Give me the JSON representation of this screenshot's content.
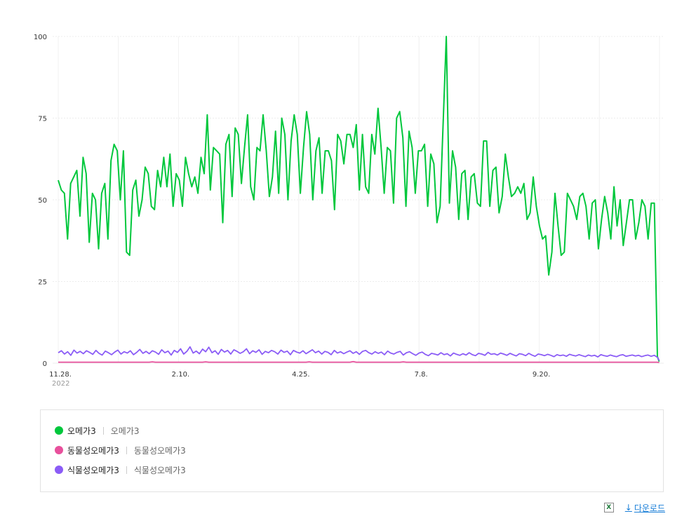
{
  "chart_data": {
    "type": "line",
    "y_ticks": [
      "100",
      "75",
      "50",
      "25",
      "0"
    ],
    "ylim": [
      0,
      100
    ],
    "x_ticks": [
      "11.28.",
      "2.10.",
      "4.25.",
      "7.8.",
      "9.20."
    ],
    "x_year_label": "2022",
    "grid": true,
    "series": [
      {
        "name": "오메가3",
        "keyword": "오메가3",
        "color": "#00c73c",
        "values": [
          56,
          53,
          52,
          38,
          55,
          57,
          59,
          45,
          63,
          58,
          37,
          52,
          50,
          35,
          52,
          55,
          38,
          62,
          67,
          65,
          50,
          65,
          34,
          33,
          53,
          56,
          45,
          50,
          60,
          58,
          48,
          47,
          59,
          54,
          63,
          54,
          64,
          48,
          58,
          56,
          48,
          63,
          58,
          54,
          57,
          52,
          63,
          58,
          76,
          53,
          66,
          65,
          64,
          43,
          67,
          70,
          51,
          72,
          70,
          55,
          66,
          76,
          54,
          50,
          66,
          65,
          76,
          65,
          51,
          57,
          71,
          52,
          75,
          70,
          50,
          68,
          76,
          70,
          52,
          66,
          77,
          70,
          50,
          65,
          69,
          52,
          65,
          65,
          62,
          47,
          70,
          68,
          61,
          70,
          70,
          66,
          73,
          53,
          70,
          54,
          52,
          70,
          64,
          78,
          66,
          52,
          66,
          65,
          49,
          75,
          77,
          69,
          48,
          71,
          66,
          52,
          65,
          65,
          67,
          48,
          64,
          61,
          43,
          48,
          74,
          100,
          49,
          65,
          60,
          44,
          58,
          59,
          44,
          57,
          58,
          49,
          48,
          68,
          68,
          48,
          59,
          60,
          46,
          51,
          64,
          57,
          51,
          52,
          54,
          52,
          55,
          44,
          46,
          57,
          48,
          42,
          38,
          39,
          27,
          34,
          52,
          42,
          33,
          34,
          52,
          50,
          48,
          44,
          51,
          52,
          48,
          38,
          49,
          50,
          35,
          44,
          51,
          46,
          38,
          54,
          42,
          50,
          36,
          43,
          50,
          50,
          38,
          43,
          50,
          48,
          38,
          49,
          49,
          2
        ],
        "endValue": 0.5
      },
      {
        "name": "동물성오메가3",
        "keyword": "동물성오메가3",
        "color": "#e8509c",
        "values": [
          0.3,
          0.3,
          0.3,
          0.3,
          0.3,
          0.3,
          0.3,
          0.3,
          0.3,
          0.3,
          0.3,
          0.3,
          0.3,
          0.3,
          0.3,
          0.3,
          0.3,
          0.3,
          0.3,
          0.3,
          0.3,
          0.3,
          0.3,
          0.3,
          0.3,
          0.3,
          0.3,
          0.3,
          0.3,
          0.3,
          0.4,
          0.3,
          0.3,
          0.3,
          0.3,
          0.3,
          0.3,
          0.3,
          0.3,
          0.3,
          0.3,
          0.3,
          0.3,
          0.3,
          0.3,
          0.3,
          0.3,
          0.4,
          0.3,
          0.3,
          0.3,
          0.3,
          0.3,
          0.3,
          0.3,
          0.3,
          0.3,
          0.3,
          0.3,
          0.3,
          0.3,
          0.3,
          0.3,
          0.3,
          0.3,
          0.3,
          0.3,
          0.3,
          0.3,
          0.3,
          0.3,
          0.3,
          0.3,
          0.3,
          0.3,
          0.3,
          0.3,
          0.3,
          0.3,
          0.3,
          0.4,
          0.3,
          0.3,
          0.3,
          0.3,
          0.3,
          0.3,
          0.3,
          0.3,
          0.3,
          0.3,
          0.3,
          0.3,
          0.3,
          0.5,
          0.3,
          0.3,
          0.3,
          0.3,
          0.3,
          0.3,
          0.3,
          0.3,
          0.3,
          0.3,
          0.3,
          0.3,
          0.3,
          0.3,
          0.3,
          0.4,
          0.3,
          0.3,
          0.3,
          0.3,
          0.3,
          0.3,
          0.3,
          0.3,
          0.3,
          0.3,
          0.3,
          0.3,
          0.3,
          0.3,
          0.3,
          0.3,
          0.3,
          0.3,
          0.3,
          0.3,
          0.3,
          0.3,
          0.3,
          0.3,
          0.3,
          0.3,
          0.3,
          0.3,
          0.3,
          0.3,
          0.3,
          0.3,
          0.3,
          0.3,
          0.3,
          0.3,
          0.3,
          0.3,
          0.3,
          0.3,
          0.3,
          0.3,
          0.3,
          0.3,
          0.3,
          0.3,
          0.3,
          0.3,
          0.3,
          0.3,
          0.3,
          0.3,
          0.3,
          0.3,
          0.3,
          0.3,
          0.3,
          0.3,
          0.3,
          0.3,
          0.3,
          0.3,
          0.3,
          0.3,
          0.3,
          0.3,
          0.3,
          0.3,
          0.3,
          0.3,
          0.3,
          0.3,
          0.3,
          0.3,
          0.3,
          0.3,
          0.3,
          0.3,
          0.3,
          0.3,
          0.3
        ],
        "endValue": 0.2
      },
      {
        "name": "식물성오메가3",
        "keyword": "식물성오메가3",
        "color": "#8b5cf6",
        "values": [
          3.2,
          3.8,
          2.8,
          3.5,
          2.4,
          4.0,
          3.1,
          3.6,
          2.9,
          3.8,
          3.3,
          2.7,
          3.9,
          3.0,
          2.5,
          3.7,
          3.2,
          2.6,
          3.4,
          4.0,
          2.8,
          3.5,
          3.1,
          3.8,
          2.6,
          3.3,
          4.2,
          3.0,
          3.6,
          2.9,
          3.8,
          3.4,
          2.7,
          4.1,
          3.2,
          3.7,
          2.5,
          3.9,
          3.3,
          4.4,
          2.8,
          3.6,
          5.0,
          3.1,
          3.7,
          2.9,
          4.3,
          3.5,
          4.9,
          3.2,
          3.8,
          2.7,
          4.2,
          3.4,
          3.9,
          2.8,
          4.1,
          3.6,
          3.0,
          3.5,
          4.4,
          2.9,
          3.8,
          3.3,
          4.1,
          2.7,
          3.6,
          3.2,
          3.9,
          3.5,
          2.8,
          4.0,
          3.3,
          3.7,
          2.6,
          3.9,
          3.4,
          3.1,
          3.8,
          2.9,
          3.5,
          4.1,
          3.2,
          3.7,
          2.8,
          3.6,
          3.3,
          2.6,
          3.9,
          3.1,
          3.5,
          2.9,
          3.4,
          3.8,
          3.0,
          3.5,
          2.7,
          3.6,
          3.9,
          3.2,
          2.8,
          3.5,
          3.0,
          3.4,
          2.6,
          3.7,
          3.1,
          2.8,
          3.3,
          3.6,
          2.5,
          3.2,
          3.5,
          2.9,
          2.4,
          3.1,
          3.4,
          2.7,
          2.3,
          3.0,
          2.8,
          2.5,
          3.2,
          2.6,
          2.9,
          2.2,
          3.1,
          2.7,
          2.4,
          2.9,
          2.5,
          3.2,
          2.6,
          2.3,
          3.0,
          2.8,
          2.4,
          3.3,
          2.7,
          2.9,
          2.5,
          3.1,
          2.8,
          2.4,
          3.0,
          2.6,
          2.2,
          2.9,
          2.7,
          2.3,
          3.0,
          2.5,
          2.1,
          2.8,
          2.6,
          2.3,
          2.7,
          2.4,
          2.0,
          2.6,
          2.3,
          2.5,
          2.1,
          2.7,
          2.4,
          2.2,
          2.6,
          2.3,
          2.0,
          2.5,
          2.2,
          2.4,
          1.9,
          2.6,
          2.3,
          2.1,
          2.5,
          2.2,
          2.0,
          2.4,
          2.6,
          2.1,
          2.3,
          2.5,
          2.2,
          2.4,
          2.0,
          2.3,
          2.5,
          2.1,
          2.4,
          1.8
        ],
        "endValue": 0.8
      }
    ]
  },
  "download": {
    "label": "다운로드",
    "arrow": "↓",
    "excel_icon": "excel-icon",
    "excel_glyph": "X"
  }
}
